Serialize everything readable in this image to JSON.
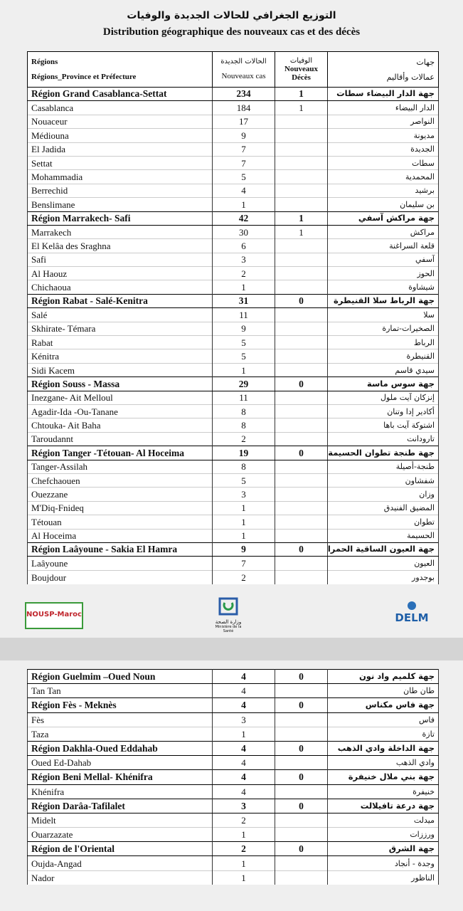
{
  "header": {
    "title_ar": "التوزيع الجغرافي للحالات الجديدة والوفيات",
    "title_fr": "Distribution géographique des nouveaux cas et des décès"
  },
  "table1": {
    "columns": [
      {
        "line1": "Régions",
        "line2": "Régions_Province et Préfecture"
      },
      {
        "line1": "الحالات الجديدة",
        "line2": "Nouveaux cas"
      },
      {
        "line1": "الوفيات",
        "line2": "Nouveaux Décès"
      },
      {
        "line1": "جهات",
        "line2": "عمالات وأقاليم"
      }
    ],
    "groups": [
      {
        "region": {
          "name": "Région Grand Casablanca-Settat",
          "cases": 234,
          "deaths": 1,
          "name_ar": "جهة الدار البيضاء سطات"
        },
        "rows": [
          {
            "name": "Casablanca",
            "cases": 184,
            "deaths": 1,
            "name_ar": "الدار البيضاء"
          },
          {
            "name": "Nouaceur",
            "cases": 17,
            "name_ar": "النواصر"
          },
          {
            "name": "Médiouna",
            "cases": 9,
            "name_ar": "مديونة"
          },
          {
            "name": "El Jadida",
            "cases": 7,
            "name_ar": "الجديدة"
          },
          {
            "name": "Settat",
            "cases": 7,
            "name_ar": "سطات"
          },
          {
            "name": "Mohammadia",
            "cases": 5,
            "name_ar": "المحمدية"
          },
          {
            "name": "Berrechid",
            "cases": 4,
            "name_ar": "برشيد"
          },
          {
            "name": "Benslimane",
            "cases": 1,
            "name_ar": "بن سليمان"
          }
        ]
      },
      {
        "region": {
          "name": "Région Marrakech- Safi",
          "cases": 42,
          "deaths": 1,
          "name_ar": "جهة مراكش آسفي"
        },
        "rows": [
          {
            "name": "Marrakech",
            "cases": 30,
            "deaths": 1,
            "name_ar": "مراكش"
          },
          {
            "name": "El Kelâa des  Sraghna",
            "cases": 6,
            "name_ar": "قلعة السراغنة"
          },
          {
            "name": "Safi",
            "cases": 3,
            "name_ar": "آسفي"
          },
          {
            "name": "Al  Haouz",
            "cases": 2,
            "name_ar": "الحوز"
          },
          {
            "name": "Chichaoua",
            "cases": 1,
            "name_ar": "شيشاوة"
          }
        ]
      },
      {
        "region": {
          "name": "Région Rabat - Salé-Kenitra",
          "cases": 31,
          "deaths": 0,
          "name_ar": "جهة الرباط سلا القنيطرة"
        },
        "rows": [
          {
            "name": "Salé",
            "cases": 11,
            "name_ar": "سلا"
          },
          {
            "name": "Skhirate- Témara",
            "cases": 9,
            "name_ar": "الصخيرات-تمارة"
          },
          {
            "name": "Rabat",
            "cases": 5,
            "name_ar": "الرباط"
          },
          {
            "name": "Kénitra",
            "cases": 5,
            "name_ar": "القنيطرة"
          },
          {
            "name": "Sidi Kacem",
            "cases": 1,
            "name_ar": "سيدي قاسم"
          }
        ]
      },
      {
        "region": {
          "name": "Région Souss - Massa",
          "cases": 29,
          "deaths": 0,
          "name_ar": "جهة سوس ماسة"
        },
        "rows": [
          {
            "name": "Inezgane- Ait Melloul",
            "cases": 11,
            "name_ar": "إنزكان آيت ملول"
          },
          {
            "name": "Agadir-Ida -Ou-Tanane",
            "cases": 8,
            "name_ar": "أكادير إدا وتنان"
          },
          {
            "name": "Chtouka- Ait Baha",
            "cases": 8,
            "name_ar": "اشتوكة آيت باها"
          },
          {
            "name": "Taroudannt",
            "cases": 2,
            "name_ar": "تارودانت"
          }
        ]
      },
      {
        "region": {
          "name": "Région Tanger -Tétouan- Al Hoceima",
          "cases": 19,
          "deaths": 0,
          "name_ar": "جهة طنجة تطوان الحسيمة"
        },
        "rows": [
          {
            "name": "Tanger-Assilah",
            "cases": 8,
            "name_ar": "طنجة-أصيلة"
          },
          {
            "name": "Chefchaouen",
            "cases": 5,
            "name_ar": "شفشاون"
          },
          {
            "name": "Ouezzane",
            "cases": 3,
            "name_ar": "وزان"
          },
          {
            "name": "M'Diq-Fnideq",
            "cases": 1,
            "name_ar": "المضيق الفنيدق"
          },
          {
            "name": "Tétouan",
            "cases": 1,
            "name_ar": "تطوان"
          },
          {
            "name": "Al Hoceima",
            "cases": 1,
            "name_ar": "الحسيمة"
          }
        ]
      },
      {
        "region": {
          "name": "Région Laâyoune - Sakia El Hamra",
          "cases": 9,
          "deaths": 0,
          "name_ar": "جهة العيون الساقية الحمراء"
        },
        "rows": [
          {
            "name": "Laâyoune",
            "cases": 7,
            "name_ar": "العيون"
          },
          {
            "name": "Boujdour",
            "cases": 2,
            "name_ar": "بوجدور"
          }
        ]
      }
    ]
  },
  "logos": {
    "left": "NOUSP-Maroc",
    "center_ar": "وزارة الصحة",
    "center_fr": "Ministère de la Santé",
    "right": "DELM"
  },
  "table2": {
    "groups": [
      {
        "region": {
          "name": "Région Guelmim –Oued Noun",
          "cases": 4,
          "deaths": 0,
          "name_ar": "جهة كلميم واد نون"
        },
        "rows": [
          {
            "name": "Tan Tan",
            "cases": 4,
            "name_ar": "طان طان"
          }
        ]
      },
      {
        "region": {
          "name": "Région Fès - Meknès",
          "cases": 4,
          "deaths": 0,
          "name_ar": "جهة فاس مكناس"
        },
        "rows": [
          {
            "name": "Fès",
            "cases": 3,
            "name_ar": "فاس"
          },
          {
            "name": "Taza",
            "cases": 1,
            "name_ar": "تازة"
          }
        ]
      },
      {
        "region": {
          "name": "Région Dakhla-Oued Eddahab",
          "cases": 4,
          "deaths": 0,
          "name_ar": "جهة الداخلة وادي الذهب"
        },
        "rows": [
          {
            "name": "Oued Ed-Dahab",
            "cases": 4,
            "name_ar": "وادي الذهب"
          }
        ]
      },
      {
        "region": {
          "name": "Région Beni Mellal- Khénifra",
          "cases": 4,
          "deaths": 0,
          "name_ar": "جهة بني ملال خنيفرة"
        },
        "rows": [
          {
            "name": "Khénifra",
            "cases": 4,
            "name_ar": "خنيفرة"
          }
        ]
      },
      {
        "region": {
          "name": "Région Darâa-Tafilalet",
          "cases": 3,
          "deaths": 0,
          "name_ar": "جهة درعة تافيلالت"
        },
        "rows": [
          {
            "name": "Midelt",
            "cases": 2,
            "name_ar": "ميدلت"
          },
          {
            "name": "Ouarzazate",
            "cases": 1,
            "name_ar": "ورززات"
          }
        ]
      },
      {
        "region": {
          "name": "Région de l'Oriental",
          "cases": 2,
          "deaths": 0,
          "name_ar": "جهة الشرق"
        },
        "rows": [
          {
            "name": "Oujda-Angad",
            "cases": 1,
            "name_ar": "وجدة - أنجاد"
          },
          {
            "name": "Nador",
            "cases": 1,
            "name_ar": "الناظور"
          }
        ]
      }
    ]
  }
}
